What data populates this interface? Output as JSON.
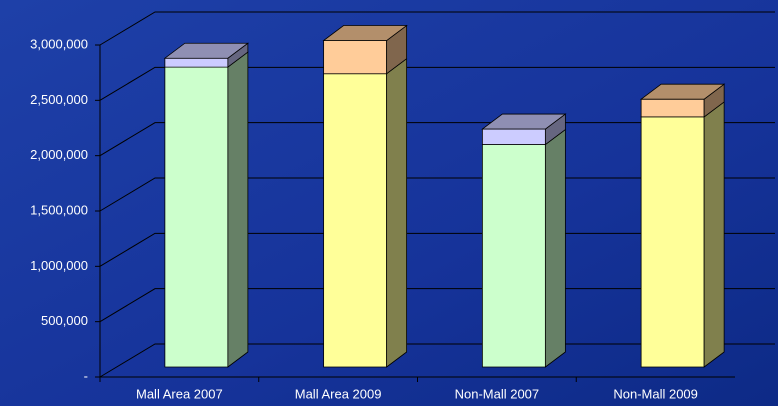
{
  "chart_data": {
    "type": "bar3d_stacked",
    "categories": [
      "Mall Area 2007",
      "Mall Area 2009",
      "Non-Mall 2007",
      "Non-Mall 2009"
    ],
    "series": [
      {
        "colors": [
          "#ccffcc",
          "#ffff99",
          "#ccffcc",
          "#ffff99"
        ],
        "values": [
          2710000,
          2650000,
          2010000,
          2260000
        ]
      },
      {
        "colors": [
          "#ccccff",
          "#ffcc99",
          "#ccccff",
          "#ffcc99"
        ],
        "values": [
          80000,
          300000,
          140000,
          160000
        ]
      }
    ],
    "ylim": [
      0,
      3000000
    ],
    "yticks": [
      {
        "value": 0,
        "label": "-"
      },
      {
        "value": 500000,
        "label": "500,000"
      },
      {
        "value": 1000000,
        "label": "1,000,000"
      },
      {
        "value": 1500000,
        "label": "1,500,000"
      },
      {
        "value": 2000000,
        "label": "2,000,000"
      },
      {
        "value": 2500000,
        "label": "2,500,000"
      },
      {
        "value": 3000000,
        "label": "3,000,000"
      }
    ],
    "grid": true
  }
}
